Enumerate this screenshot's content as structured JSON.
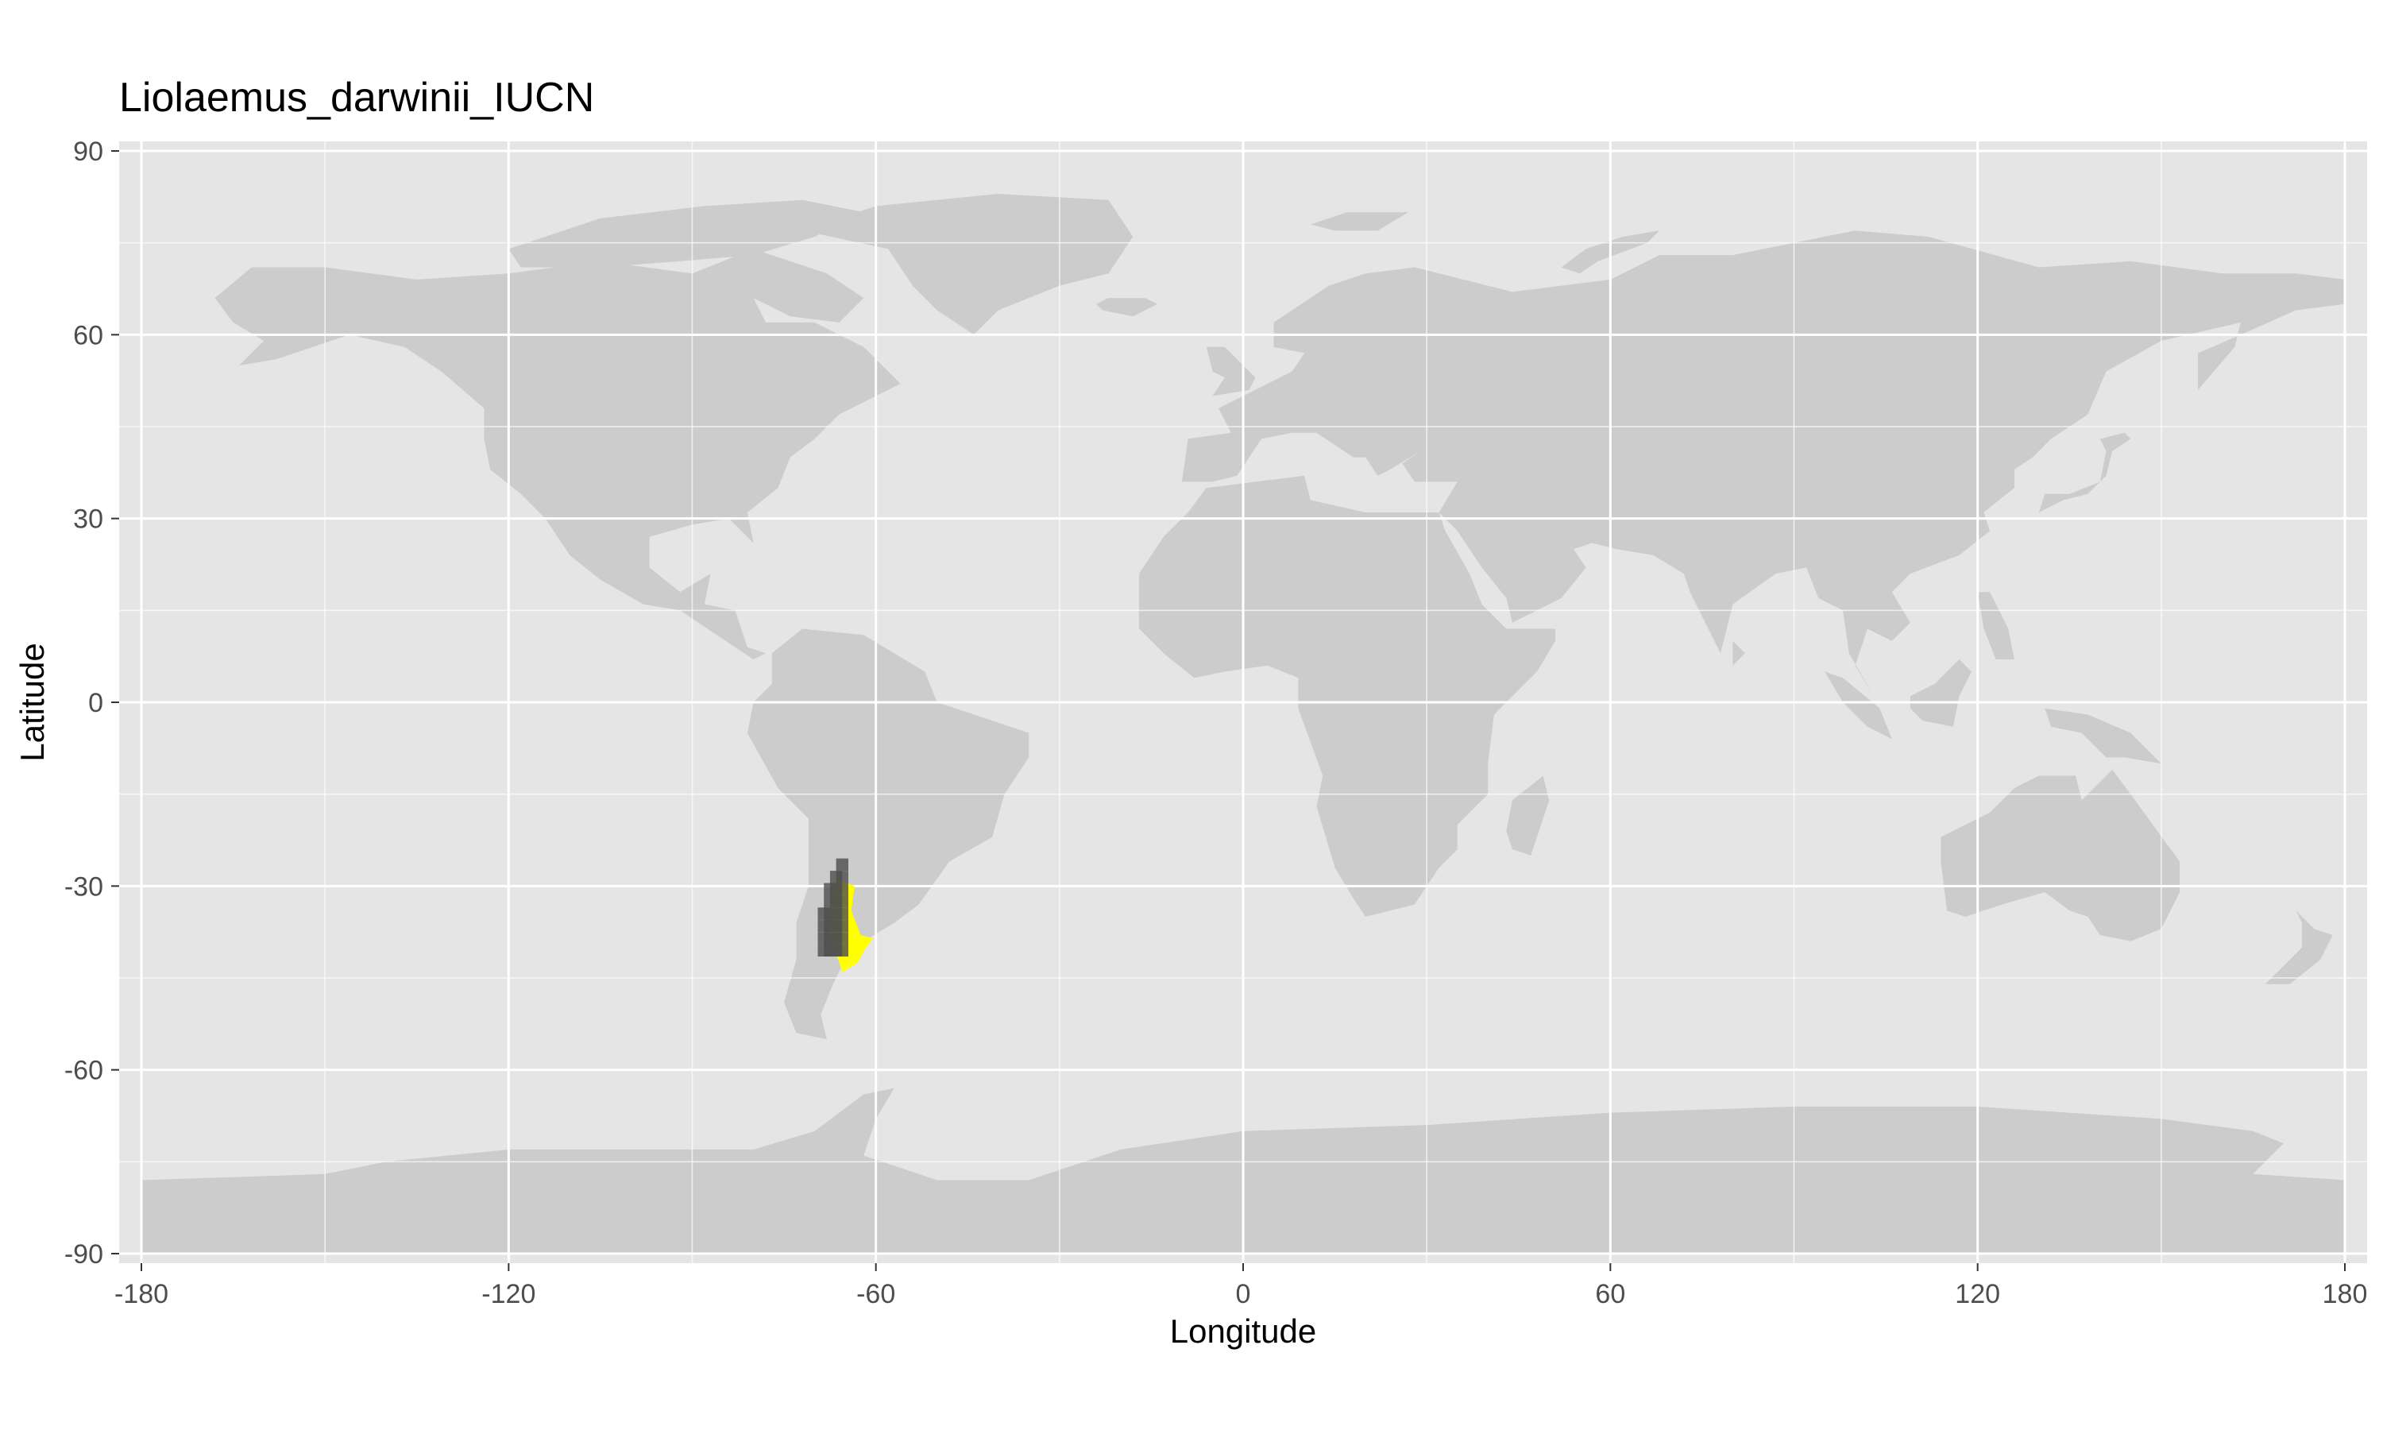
{
  "title": "Liolaemus_darwinii_IUCN",
  "map": {
    "xlabel": "Longitude",
    "ylabel": "Latitude",
    "xlim": [
      -180,
      180
    ],
    "ylim": [
      -90,
      90
    ],
    "x_ticks": [
      "-180",
      "-120",
      "-60",
      "0",
      "60",
      "120",
      "180"
    ],
    "y_ticks": [
      "90",
      "60",
      "30",
      "0",
      "-30",
      "-60",
      "-90"
    ],
    "grid": true,
    "colors": {
      "panel_background": "#e5e5e5",
      "land": "#cccccc",
      "grid_major": "#ffffff",
      "range_polygon": "#ffff00",
      "occurrence_cells": "#4d4d4d"
    },
    "range_polygon_lonlat": [
      [
        -66,
        -29
      ],
      [
        -63.5,
        -30
      ],
      [
        -64,
        -34
      ],
      [
        -62.5,
        -38
      ],
      [
        -60.5,
        -38.5
      ],
      [
        -62,
        -40.5
      ],
      [
        -63,
        -42.5
      ],
      [
        -65.5,
        -44
      ],
      [
        -66.5,
        -41
      ],
      [
        -67.5,
        -38
      ],
      [
        -67.5,
        -33
      ],
      [
        -66.8,
        -30
      ]
    ],
    "occurrence_cells_lonlat": [
      [
        -65.5,
        -26.5
      ],
      [
        -65.5,
        -28.5
      ],
      [
        -66.5,
        -28.5
      ],
      [
        -66.5,
        -30.5
      ],
      [
        -65.5,
        -30.5
      ],
      [
        -67.5,
        -30.5
      ],
      [
        -67.5,
        -32.5
      ],
      [
        -66.5,
        -32.5
      ],
      [
        -65.5,
        -32.5
      ],
      [
        -68.5,
        -34.5
      ],
      [
        -67.5,
        -34.5
      ],
      [
        -66.5,
        -34.5
      ],
      [
        -65.5,
        -34.5
      ],
      [
        -68.5,
        -36.5
      ],
      [
        -67.5,
        -36.5
      ],
      [
        -66.5,
        -36.5
      ],
      [
        -65.5,
        -36.5
      ],
      [
        -68.5,
        -38.5
      ],
      [
        -67.5,
        -38.5
      ],
      [
        -66.5,
        -38.5
      ],
      [
        -65.5,
        -38.5
      ],
      [
        -68.5,
        -40.5
      ],
      [
        -67.5,
        -40.5
      ],
      [
        -66.5,
        -40.5
      ],
      [
        -65.5,
        -40.5
      ]
    ]
  }
}
